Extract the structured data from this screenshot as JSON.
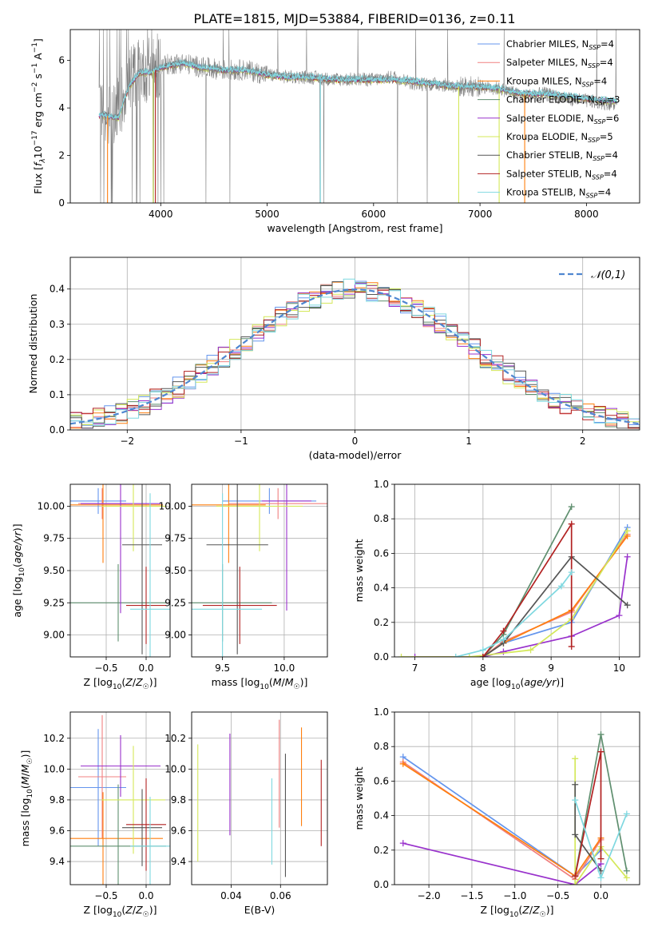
{
  "title": "PLATE=1815, MJD=53884, FIBERID=0136, z=0.11",
  "legend_entries": [
    {
      "label": "Chabrier MILES, N",
      "sub": "SSP",
      "tail": "=4",
      "color": "#6495ed"
    },
    {
      "label": "Salpeter MILES, N",
      "sub": "SSP",
      "tail": "=4",
      "color": "#f08080"
    },
    {
      "label": "Kroupa MILES, N",
      "sub": "SSP",
      "tail": "=4",
      "color": "#ff7f0e"
    },
    {
      "label": "Chabrier ELODIE, N",
      "sub": "SSP",
      "tail": "=3",
      "color": "#5f8f6f"
    },
    {
      "label": "Salpeter ELODIE, N",
      "sub": "SSP",
      "tail": "=6",
      "color": "#9932cc"
    },
    {
      "label": "Kroupa ELODIE, N",
      "sub": "SSP",
      "tail": "=5",
      "color": "#d4e85a"
    },
    {
      "label": "Chabrier STELIB, N",
      "sub": "SSP",
      "tail": "=4",
      "color": "#555555"
    },
    {
      "label": "Salpeter STELIB, N",
      "sub": "SSP",
      "tail": "=4",
      "color": "#b22222"
    },
    {
      "label": "Kroupa STELIB, N",
      "sub": "SSP",
      "tail": "=4",
      "color": "#7fd8e0"
    }
  ],
  "hist_legend": "𝒩(0,1)",
  "chart_data": [
    {
      "id": "spectrum",
      "type": "line",
      "xlabel": "wavelength [Angstrom, rest frame]",
      "ylabel": "Flux [f_λ10^-17 erg cm^-2 s^-1 A^-1]",
      "xlim": [
        3150,
        8500
      ],
      "ylim": [
        0,
        7.3
      ],
      "xticks": [
        4000,
        5000,
        6000,
        7000,
        8000
      ],
      "yticks": [
        0,
        2,
        4,
        6
      ],
      "grid": false,
      "series": [
        {
          "name": "data",
          "color": "#808080",
          "x": [
            3450,
            3600,
            3700,
            3800,
            3900,
            4000,
            4200,
            4400,
            4600,
            4800,
            5000,
            5200,
            5400,
            5600,
            5800,
            6000,
            6200,
            6400,
            6600,
            6800,
            7000,
            7200,
            7400,
            7600,
            7800,
            8000,
            8200,
            8300
          ],
          "y": [
            3.6,
            4.0,
            5.2,
            5.6,
            5.6,
            5.8,
            5.9,
            5.7,
            5.6,
            5.6,
            5.4,
            5.3,
            5.3,
            5.2,
            5.2,
            5.2,
            5.3,
            5.0,
            5.0,
            4.9,
            4.9,
            4.8,
            4.5,
            4.6,
            4.4,
            4.3,
            4.2,
            4.1
          ]
        },
        {
          "name": "model",
          "color": "#7fd8e0",
          "x": [
            3450,
            3600,
            3700,
            3800,
            3900,
            4000,
            4200,
            4400,
            4600,
            4800,
            5000,
            5200,
            5400,
            5600,
            5800,
            6000,
            6200,
            6400,
            6600,
            6800,
            7000,
            7200,
            7400,
            7600,
            7800,
            8000,
            8200,
            8300
          ],
          "y": [
            3.7,
            3.6,
            4.9,
            5.5,
            5.5,
            5.7,
            5.9,
            5.7,
            5.6,
            5.6,
            5.4,
            5.3,
            5.3,
            5.2,
            5.2,
            5.2,
            5.2,
            5.1,
            5.0,
            4.9,
            4.9,
            4.8,
            4.6,
            4.6,
            4.5,
            4.4,
            4.3,
            4.3
          ]
        }
      ]
    },
    {
      "id": "residual_histogram",
      "type": "line",
      "xlabel": "(data-model)/error",
      "ylabel": "Normed distribution",
      "xlim": [
        -2.5,
        2.5
      ],
      "ylim": [
        0,
        0.49
      ],
      "xticks": [
        -2,
        -1,
        0,
        1,
        2
      ],
      "yticks": [
        0.0,
        0.1,
        0.2,
        0.3,
        0.4
      ],
      "grid": true,
      "legend": "top-right",
      "gaussian": {
        "mu": 0,
        "sigma": 1,
        "name": "𝒩(0,1)"
      }
    },
    {
      "id": "age_vs_Z",
      "type": "scatter",
      "xlabel": "Z [log10(Z/Z☉)]",
      "ylabel": "age [log10(age/yr)]",
      "xlim": [
        -0.95,
        0.3
      ],
      "ylim": [
        8.83,
        10.17
      ],
      "xticks": [
        -0.5,
        0.0
      ],
      "yticks": [
        9.0,
        9.25,
        9.5,
        9.75,
        10.0
      ],
      "grid": true,
      "points": [
        {
          "x": -0.6,
          "y": 10.04,
          "xerr": 0.35,
          "yerr": 0.1,
          "color": "#6495ed"
        },
        {
          "x": -0.55,
          "y": 10.02,
          "xerr": 0.3,
          "yerr": 0.12,
          "color": "#f08080"
        },
        {
          "x": -0.54,
          "y": 10.01,
          "xerr": 0.75,
          "yerr": 0.45,
          "color": "#ff7f0e"
        },
        {
          "x": -0.35,
          "y": 9.25,
          "xerr": 0.6,
          "yerr": 0.3,
          "color": "#5f8f6f"
        },
        {
          "x": -0.32,
          "y": 10.02,
          "xerr": 0.5,
          "yerr": 0.85,
          "color": "#9932cc"
        },
        {
          "x": -0.16,
          "y": 10.0,
          "xerr": 0.4,
          "yerr": 0.35,
          "color": "#d4e85a"
        },
        {
          "x": -0.05,
          "y": 9.7,
          "xerr": 0.25,
          "yerr": 0.85,
          "color": "#555555"
        },
        {
          "x": 0.0,
          "y": 9.23,
          "xerr": 0.25,
          "yerr": 0.3,
          "color": "#b22222"
        },
        {
          "x": 0.05,
          "y": 9.2,
          "xerr": 0.25,
          "yerr": 0.9,
          "color": "#7fd8e0"
        }
      ]
    },
    {
      "id": "age_vs_mass",
      "type": "scatter",
      "xlabel": "mass [log10(M/M☉)]",
      "ylabel": "",
      "xlim": [
        9.25,
        10.35
      ],
      "ylim": [
        8.83,
        10.17
      ],
      "xticks": [
        9.5,
        10.0
      ],
      "yticks": [
        9.0,
        9.25,
        9.5,
        9.75,
        10.0
      ],
      "grid": true,
      "points": [
        {
          "x": 9.88,
          "y": 10.04,
          "xerr": 0.38,
          "yerr": 0.1,
          "color": "#6495ed"
        },
        {
          "x": 9.95,
          "y": 10.02,
          "xerr": 0.4,
          "yerr": 0.12,
          "color": "#f08080"
        },
        {
          "x": 9.55,
          "y": 10.01,
          "xerr": 0.3,
          "yerr": 0.45,
          "color": "#ff7f0e"
        },
        {
          "x": 9.5,
          "y": 9.25,
          "xerr": 0.4,
          "yerr": 0.3,
          "color": "#5f8f6f"
        },
        {
          "x": 10.02,
          "y": 10.04,
          "xerr": 0.2,
          "yerr": 0.85,
          "color": "#9932cc"
        },
        {
          "x": 9.8,
          "y": 10.0,
          "xerr": 0.35,
          "yerr": 0.35,
          "color": "#d4e85a"
        },
        {
          "x": 9.62,
          "y": 9.7,
          "xerr": 0.25,
          "yerr": 0.85,
          "color": "#555555"
        },
        {
          "x": 9.64,
          "y": 9.23,
          "xerr": 0.3,
          "yerr": 0.3,
          "color": "#b22222"
        },
        {
          "x": 9.5,
          "y": 9.2,
          "xerr": 0.32,
          "yerr": 0.9,
          "color": "#7fd8e0"
        }
      ]
    },
    {
      "id": "mass_weight_vs_age",
      "type": "line",
      "xlabel": "age [log10(age/yr)]",
      "ylabel": "mass weight",
      "xlim": [
        6.7,
        10.3
      ],
      "ylim": [
        0,
        1.0
      ],
      "xticks": [
        7,
        8,
        9,
        10
      ],
      "yticks": [
        0.0,
        0.2,
        0.4,
        0.6,
        0.8,
        1.0
      ],
      "grid": true,
      "series": [
        {
          "color": "#6495ed",
          "x": [
            8.0,
            8.3,
            9.3,
            10.12
          ],
          "y": [
            0.0,
            0.08,
            0.2,
            0.75
          ]
        },
        {
          "color": "#f08080",
          "x": [
            8.0,
            8.3,
            9.3,
            10.12
          ],
          "y": [
            0.0,
            0.09,
            0.26,
            0.71
          ]
        },
        {
          "color": "#ff7f0e",
          "x": [
            8.0,
            8.3,
            9.3,
            10.12
          ],
          "y": [
            0.0,
            0.08,
            0.27,
            0.7
          ]
        },
        {
          "color": "#5f8f6f",
          "x": [
            8.0,
            8.3,
            9.3
          ],
          "y": [
            0.0,
            0.13,
            0.87
          ]
        },
        {
          "color": "#9932cc",
          "x": [
            7.0,
            8.0,
            8.3,
            9.3,
            10.0,
            10.12
          ],
          "y": [
            0.0,
            0.0,
            0.03,
            0.12,
            0.24,
            0.58
          ]
        },
        {
          "color": "#d4e85a",
          "x": [
            6.8,
            7.8,
            8.7,
            9.3,
            10.12
          ],
          "y": [
            0.0,
            0.0,
            0.04,
            0.22,
            0.73
          ]
        },
        {
          "color": "#555555",
          "x": [
            8.0,
            8.3,
            9.3,
            10.12
          ],
          "y": [
            0.0,
            0.08,
            0.58,
            0.3
          ]
        },
        {
          "color": "#b22222",
          "x": [
            8.0,
            8.3,
            9.3,
            9.3
          ],
          "y": [
            0.0,
            0.15,
            0.77,
            0.06
          ]
        },
        {
          "color": "#7fd8e0",
          "x": [
            7.6,
            8.0,
            8.3,
            9.15,
            9.3
          ],
          "y": [
            0.0,
            0.04,
            0.1,
            0.41,
            0.49
          ]
        }
      ]
    },
    {
      "id": "mass_vs_Z",
      "type": "scatter",
      "xlabel": "Z [log10(Z/Z☉)]",
      "ylabel": "mass [log10(M/M☉)]",
      "xlim": [
        -0.95,
        0.3
      ],
      "ylim": [
        9.25,
        10.37
      ],
      "xticks": [
        -0.5,
        0.0
      ],
      "yticks": [
        9.4,
        9.6,
        9.8,
        10.0,
        10.2
      ],
      "grid": true,
      "points": [
        {
          "x": -0.6,
          "y": 9.88,
          "xerr": 0.35,
          "yerr": 0.38,
          "color": "#6495ed"
        },
        {
          "x": -0.55,
          "y": 9.95,
          "xerr": 0.3,
          "yerr": 0.4,
          "color": "#f08080"
        },
        {
          "x": -0.54,
          "y": 9.55,
          "xerr": 0.75,
          "yerr": 0.3,
          "color": "#ff7f0e"
        },
        {
          "x": -0.35,
          "y": 9.5,
          "xerr": 0.6,
          "yerr": 0.4,
          "color": "#5f8f6f"
        },
        {
          "x": -0.32,
          "y": 10.02,
          "xerr": 0.5,
          "yerr": 0.2,
          "color": "#9932cc"
        },
        {
          "x": -0.16,
          "y": 9.8,
          "xerr": 0.4,
          "yerr": 0.35,
          "color": "#d4e85a"
        },
        {
          "x": -0.05,
          "y": 9.62,
          "xerr": 0.25,
          "yerr": 0.25,
          "color": "#555555"
        },
        {
          "x": 0.0,
          "y": 9.64,
          "xerr": 0.25,
          "yerr": 0.3,
          "color": "#b22222"
        },
        {
          "x": 0.05,
          "y": 9.5,
          "xerr": 0.25,
          "yerr": 0.32,
          "color": "#7fd8e0"
        }
      ]
    },
    {
      "id": "mass_vs_EBV",
      "type": "scatter",
      "xlabel": "E(B-V)",
      "ylabel": "",
      "xlim": [
        0.024,
        0.079
      ],
      "ylim": [
        9.25,
        10.37
      ],
      "xticks": [
        0.04,
        0.06
      ],
      "yticks": [
        9.4,
        9.6,
        9.8,
        10.0,
        10.2
      ],
      "grid": true,
      "points": [
        {
          "x": 0.0265,
          "y": 9.78,
          "yerr": 0.38,
          "color": "#d4e85a"
        },
        {
          "x": 0.0395,
          "y": 9.9,
          "yerr": 0.33,
          "color": "#9932cc"
        },
        {
          "x": 0.0565,
          "y": 9.66,
          "yerr": 0.28,
          "color": "#7fd8e0"
        },
        {
          "x": 0.0595,
          "y": 9.97,
          "yerr": 0.35,
          "color": "#f08080"
        },
        {
          "x": 0.062,
          "y": 9.7,
          "yerr": 0.4,
          "color": "#555555"
        },
        {
          "x": 0.0685,
          "y": 9.95,
          "yerr": 0.32,
          "color": "#ff7f0e"
        },
        {
          "x": 0.0765,
          "y": 9.78,
          "yerr": 0.28,
          "color": "#b22222"
        }
      ]
    },
    {
      "id": "mass_weight_vs_Z",
      "type": "line",
      "xlabel": "Z [log10(Z/Z☉)]",
      "ylabel": "mass weight",
      "xlim": [
        -2.4,
        0.45
      ],
      "ylim": [
        0,
        1.0
      ],
      "xticks": [
        -2.0,
        -1.5,
        -1.0,
        -0.5,
        0.0
      ],
      "yticks": [
        0.0,
        0.2,
        0.4,
        0.6,
        0.8,
        1.0
      ],
      "grid": true,
      "series": [
        {
          "color": "#6495ed",
          "x": [
            -2.3,
            -0.3,
            0.0
          ],
          "y": [
            0.74,
            0.05,
            0.2
          ]
        },
        {
          "color": "#f08080",
          "x": [
            -2.3,
            -0.3,
            0.0
          ],
          "y": [
            0.71,
            0.03,
            0.26
          ]
        },
        {
          "color": "#ff7f0e",
          "x": [
            -2.3,
            -0.3,
            0.0
          ],
          "y": [
            0.7,
            0.05,
            0.27
          ]
        },
        {
          "color": "#5f8f6f",
          "x": [
            -0.3,
            0.0,
            0.3
          ],
          "y": [
            0.05,
            0.87,
            0.08
          ]
        },
        {
          "color": "#9932cc",
          "x": [
            -2.3,
            -0.3,
            0.0
          ],
          "y": [
            0.24,
            0.0,
            0.12
          ]
        },
        {
          "color": "#d4e85a",
          "x": [
            -0.3,
            -0.3,
            0.0,
            0.3
          ],
          "y": [
            0.73,
            0.0,
            0.22,
            0.04
          ]
        },
        {
          "color": "#555555",
          "x": [
            -0.3,
            -0.3,
            0.0
          ],
          "y": [
            0.58,
            0.29,
            0.08
          ]
        },
        {
          "color": "#b22222",
          "x": [
            -0.3,
            0.0,
            0.0
          ],
          "y": [
            0.05,
            0.77,
            0.15
          ]
        },
        {
          "color": "#7fd8e0",
          "x": [
            -0.3,
            0.0,
            0.3
          ],
          "y": [
            0.49,
            0.04,
            0.41
          ]
        }
      ]
    }
  ]
}
